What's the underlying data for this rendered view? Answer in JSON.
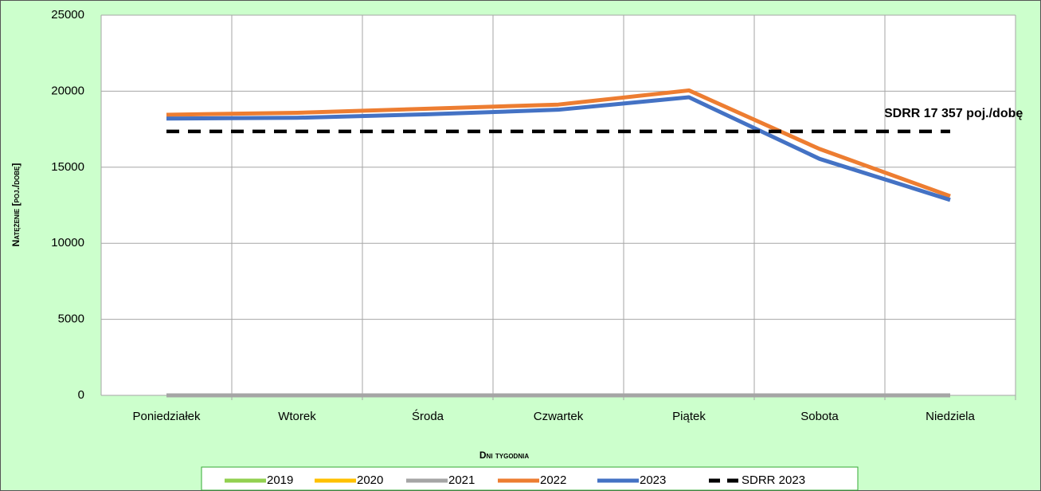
{
  "chart_data": {
    "type": "line",
    "x_label": "Dni tygodnia",
    "y_label": "Natężenie [poj./dobę]",
    "annotation": "SDRR 17 357 poj./dobę",
    "categories": [
      "Poniedziałek",
      "Wtorek",
      "Środa",
      "Czwartek",
      "Piątek",
      "Sobota",
      "Niedziela"
    ],
    "ylim": [
      0,
      25000
    ],
    "yticks": [
      0,
      5000,
      10000,
      15000,
      20000,
      25000
    ],
    "grid": true,
    "legend": "bottom",
    "series": [
      {
        "name": "2019",
        "color": "#92d050",
        "values": [
          0,
          0,
          0,
          0,
          0,
          0,
          0
        ]
      },
      {
        "name": "2020",
        "color": "#ffc000",
        "values": [
          0,
          0,
          0,
          0,
          0,
          0,
          0
        ]
      },
      {
        "name": "2021",
        "color": "#a5a5a5",
        "values": [
          0,
          0,
          0,
          0,
          0,
          0,
          0
        ]
      },
      {
        "name": "2022",
        "color": "#ed7d31",
        "values": [
          18450,
          18580,
          18850,
          19120,
          20050,
          16200,
          13100
        ]
      },
      {
        "name": "2023",
        "color": "#4472c4",
        "values": [
          18200,
          18250,
          18480,
          18780,
          19600,
          15550,
          12850
        ]
      },
      {
        "name": "SDRR 2023",
        "color": "#000000",
        "dashed": true,
        "values": [
          17357,
          17357,
          17357,
          17357,
          17357,
          17357,
          17357
        ]
      }
    ]
  }
}
